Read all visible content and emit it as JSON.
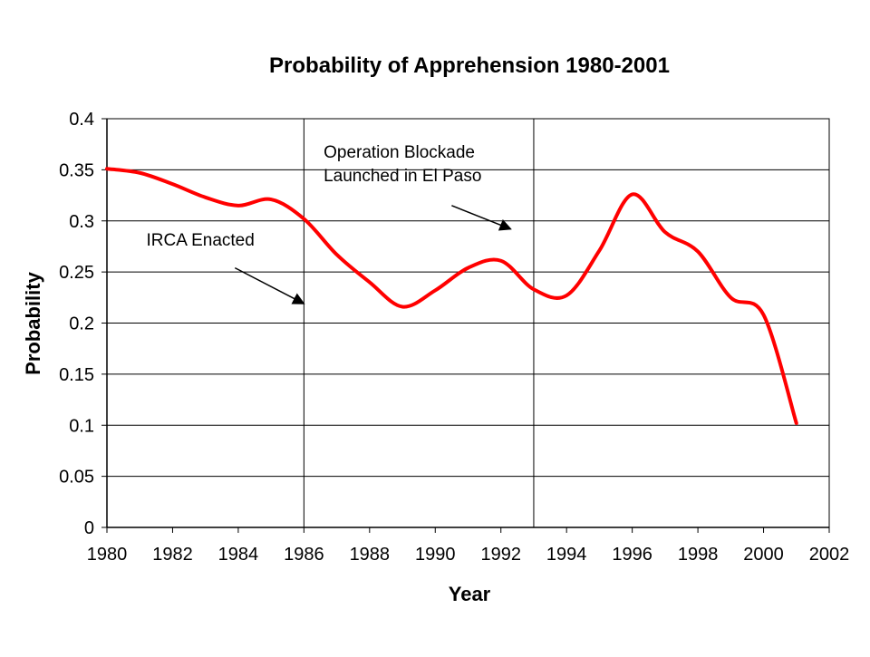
{
  "chart_data": {
    "type": "line",
    "title": "Probability of Apprehension 1980-2001",
    "xlabel": "Year",
    "ylabel": "Probability",
    "xlim": [
      1980,
      2002
    ],
    "ylim": [
      0,
      0.4
    ],
    "x_ticks": [
      1980,
      1982,
      1984,
      1986,
      1988,
      1990,
      1992,
      1994,
      1996,
      1998,
      2000,
      2002
    ],
    "y_ticks": [
      0,
      0.05,
      0.1,
      0.15,
      0.2,
      0.25,
      0.3,
      0.35,
      0.4
    ],
    "y_tick_labels": [
      "0",
      "0.05",
      "0.1",
      "0.15",
      "0.2",
      "0.25",
      "0.3",
      "0.35",
      "0.4"
    ],
    "grid": "horizontal",
    "legend": "none",
    "series_color": "#ff0000",
    "series": [
      {
        "x": [
          1980,
          1981,
          1982,
          1983,
          1984,
          1985,
          1986,
          1987,
          1988,
          1989,
          1990,
          1991,
          1992,
          1993,
          1994,
          1995,
          1996,
          1997,
          1998,
          1999,
          2000,
          2001
        ],
        "values": [
          0.351,
          0.347,
          0.336,
          0.323,
          0.315,
          0.321,
          0.302,
          0.267,
          0.24,
          0.216,
          0.232,
          0.254,
          0.261,
          0.233,
          0.227,
          0.271,
          0.326,
          0.289,
          0.27,
          0.225,
          0.208,
          0.102
        ]
      }
    ],
    "vlines": [
      1986,
      1993
    ],
    "annotations": [
      {
        "id": "irca",
        "lines": [
          "IRCA Enacted"
        ],
        "text_x": 1981.2,
        "text_y": 0.276,
        "arrow_from": [
          1983.9,
          0.254
        ],
        "arrow_to": [
          1986.0,
          0.219
        ]
      },
      {
        "id": "blockade",
        "lines": [
          "Operation Blockade",
          "Launched in El Paso"
        ],
        "text_x": 1986.6,
        "text_y": 0.362,
        "arrow_from": [
          1990.5,
          0.315
        ],
        "arrow_to": [
          1992.3,
          0.292
        ]
      }
    ]
  }
}
